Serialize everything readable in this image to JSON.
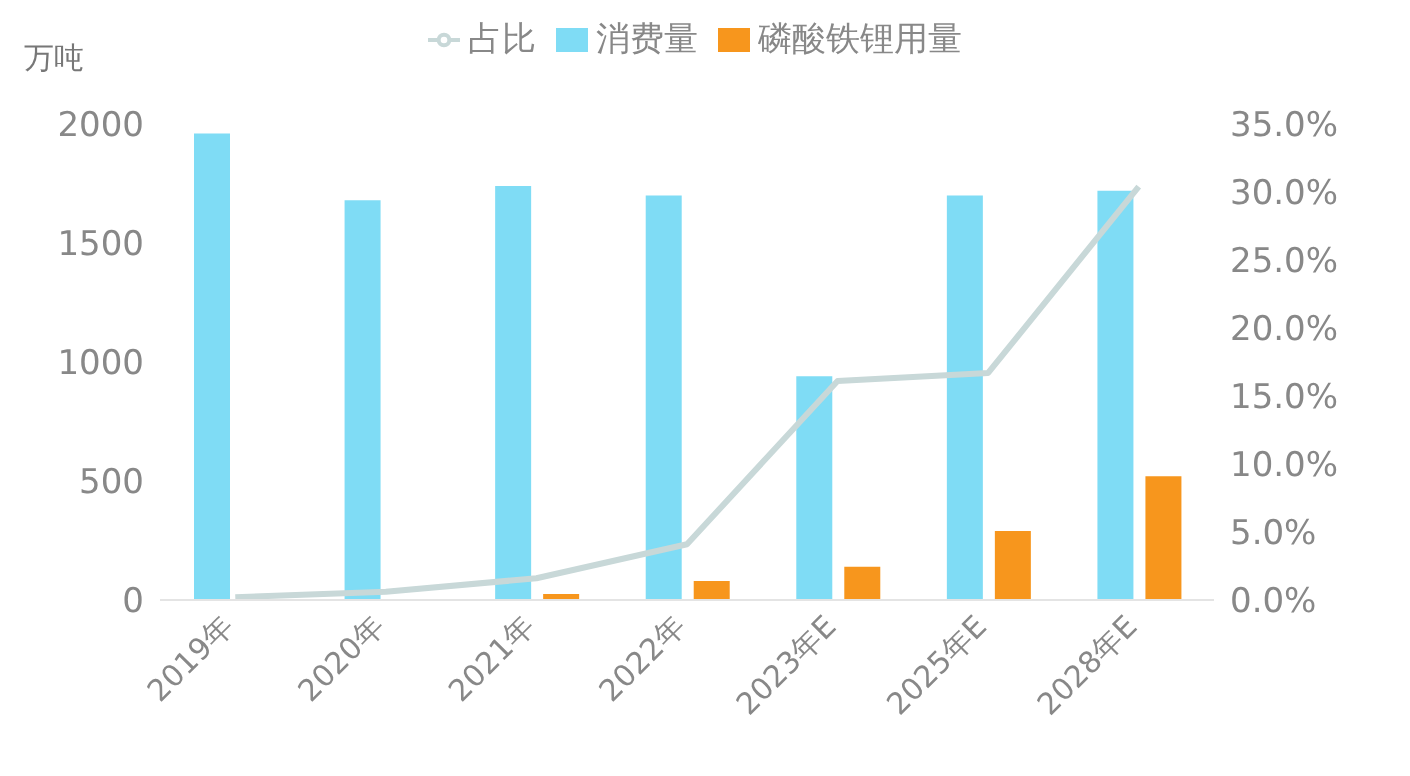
{
  "chart_data": {
    "type": "bar",
    "ylabel": "万吨",
    "categories": [
      "2019年",
      "2020年",
      "2021年",
      "2022年",
      "2023年E",
      "2025年E",
      "2028年E"
    ],
    "series": [
      {
        "name": "消费量",
        "color": "#7fdcf5",
        "values": [
          1960,
          1680,
          1740,
          1700,
          940,
          1700,
          1720
        ]
      },
      {
        "name": "磷酸铁锂用量",
        "color": "#f7961d",
        "values": [
          0,
          0,
          25,
          80,
          140,
          290,
          520
        ]
      },
      {
        "name": "占比",
        "type": "line",
        "axis": "y2",
        "color": "#c8d8d8",
        "values": [
          0.2,
          0.6,
          1.6,
          4.1,
          16.1,
          16.7,
          30.4
        ]
      }
    ],
    "ylim": [
      0,
      2000
    ],
    "yticks": [
      0,
      500,
      1000,
      1500,
      2000
    ],
    "y2lim": [
      0,
      35
    ],
    "y2ticks": [
      {
        "value": 0,
        "label": "0.0%"
      },
      {
        "value": 5,
        "label": "5.0%"
      },
      {
        "value": 10,
        "label": "10.0%"
      },
      {
        "value": 15,
        "label": "15.0%"
      },
      {
        "value": 20,
        "label": "20.0%"
      },
      {
        "value": 25,
        "label": "25.0%"
      },
      {
        "value": 30,
        "label": "30.0%"
      },
      {
        "value": 35,
        "label": "35.0%"
      }
    ],
    "legend": "top",
    "grid": false,
    "marker": "none"
  }
}
